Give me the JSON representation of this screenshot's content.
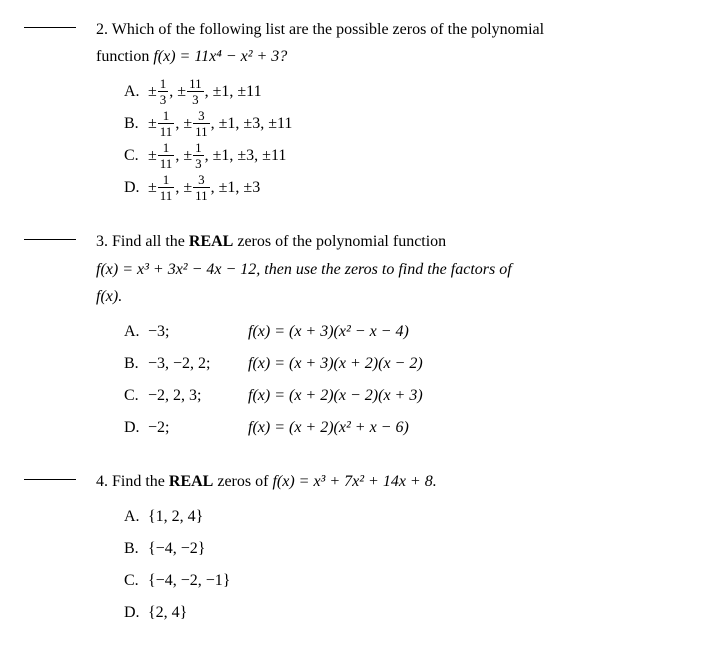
{
  "q2": {
    "number": "2.",
    "prompt_l1": "Which of the following list are the possible zeros of the polynomial",
    "prompt_l2_pre": "function ",
    "prompt_l2_fn": " f(x) = 11x⁴ − x² + 3?",
    "labels": {
      "A": "A.",
      "B": "B.",
      "C": "C.",
      "D": "D."
    },
    "A": {
      "t1n": "1",
      "t1d": "3",
      "t2n": "11",
      "t2d": "3",
      "tail": ", ±1, ±11"
    },
    "B": {
      "t1n": "1",
      "t1d": "11",
      "t2n": "3",
      "t2d": "11",
      "tail": ", ±1, ±3, ±11"
    },
    "C": {
      "t1n": "1",
      "t1d": "11",
      "t2n": "1",
      "t2d": "3",
      "tail": ", ±1, ±3, ±11"
    },
    "D": {
      "t1n": "1",
      "t1d": "11",
      "t2n": "3",
      "t2d": "11",
      "tail": ", ±1, ±3"
    }
  },
  "q3": {
    "number": "3.",
    "prompt_l1_a": "Find all the ",
    "prompt_l1_b": "REAL",
    "prompt_l1_c": " zeros of the polynomial function",
    "prompt_l2": "f(x) = x³ + 3x² − 4x − 12, then use the zeros to find the factors of",
    "prompt_l3": "f(x).",
    "labels": {
      "A": "A.",
      "B": "B.",
      "C": "C.",
      "D": "D."
    },
    "A": {
      "z": "−3;",
      "f": "f(x) = (x + 3)(x² − x − 4)"
    },
    "B": {
      "z": "−3, −2, 2;",
      "f": "f(x) = (x + 3)(x + 2)(x − 2)"
    },
    "C": {
      "z": "−2, 2, 3;",
      "f": "f(x) = (x + 2)(x − 2)(x + 3)"
    },
    "D": {
      "z": "−2;",
      "f": "f(x) = (x + 2)(x² + x − 6)"
    }
  },
  "q4": {
    "number": "4.",
    "prompt_a": "Find the ",
    "prompt_b": "REAL",
    "prompt_c": " zeros of ",
    "prompt_fn": "f(x) = x³ + 7x² + 14x + 8.",
    "labels": {
      "A": "A.",
      "B": "B.",
      "C": "C.",
      "D": "D."
    },
    "A": "{1, 2, 4}",
    "B": "{−4, −2}",
    "C": "{−4, −2, −1}",
    "D": "{2, 4}"
  }
}
